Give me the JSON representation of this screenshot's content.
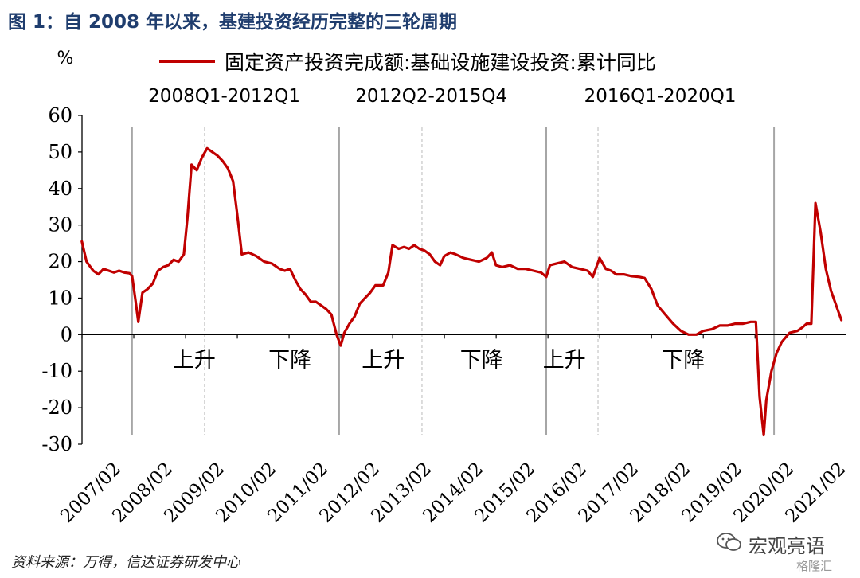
{
  "figure_title": "图 1：自 2008 年以来，基建投资经历完整的三轮周期",
  "source_note": "资料来源：万得，信达证券研发中心",
  "watermark": {
    "brand": "宏观亮语",
    "site": "格隆汇"
  },
  "colors": {
    "series": "#c00000",
    "title": "#1f3d6e",
    "separator": "#a6a6a6"
  },
  "chart_data": {
    "type": "line",
    "title": "",
    "ylabel": "%",
    "xlabel": "",
    "ylim": [
      -30,
      60
    ],
    "yticks": [
      60,
      50,
      40,
      30,
      20,
      10,
      0,
      -10,
      -20,
      -30
    ],
    "xlim": [
      2007.083,
      2021.833
    ],
    "xticks": [
      {
        "label": "2007/02",
        "x": 2007.083
      },
      {
        "label": "2008/02",
        "x": 2008.083
      },
      {
        "label": "2009/02",
        "x": 2009.083
      },
      {
        "label": "2010/02",
        "x": 2010.083
      },
      {
        "label": "2011/02",
        "x": 2011.083
      },
      {
        "label": "2012/02",
        "x": 2012.083
      },
      {
        "label": "2013/02",
        "x": 2013.083
      },
      {
        "label": "2014/02",
        "x": 2014.083
      },
      {
        "label": "2015/02",
        "x": 2015.083
      },
      {
        "label": "2016/02",
        "x": 2016.083
      },
      {
        "label": "2017/02",
        "x": 2017.083
      },
      {
        "label": "2018/02",
        "x": 2018.083
      },
      {
        "label": "2019/02",
        "x": 2019.083
      },
      {
        "label": "2020/02",
        "x": 2020.083
      },
      {
        "label": "2021/02",
        "x": 2021.083
      }
    ],
    "legend": {
      "position": "top",
      "label": "固定资产投资完成额:基础设施建设投资:累计同比"
    },
    "period_labels": [
      {
        "text": "2008Q1-2012Q1",
        "x": 2009.83
      },
      {
        "text": "2012Q2-2015Q4",
        "x": 2013.83
      },
      {
        "text": "2016Q1-2020Q1",
        "x": 2018.25
      }
    ],
    "phase_labels": [
      {
        "text": "上升",
        "x": 2009.25
      },
      {
        "text": "下降",
        "x": 2011.1
      },
      {
        "text": "上升",
        "x": 2012.9
      },
      {
        "text": "下降",
        "x": 2014.8
      },
      {
        "text": "上升",
        "x": 2016.4
      },
      {
        "text": "下降",
        "x": 2018.7
      }
    ],
    "cycle_boundaries": [
      2008.05,
      2012.05,
      2016.05,
      2020.45
    ],
    "phase_dividers": [
      2009.45,
      2013.65,
      2017.05
    ],
    "series": [
      {
        "name": "固定资产投资完成额:基础设施建设投资:累计同比",
        "points": [
          [
            2007.08,
            25.5
          ],
          [
            2007.17,
            20.0
          ],
          [
            2007.3,
            17.5
          ],
          [
            2007.4,
            16.5
          ],
          [
            2007.5,
            18.0
          ],
          [
            2007.6,
            17.5
          ],
          [
            2007.7,
            17.0
          ],
          [
            2007.8,
            17.5
          ],
          [
            2007.9,
            17.0
          ],
          [
            2008.0,
            16.8
          ],
          [
            2008.05,
            16.0
          ],
          [
            2008.12,
            9.0
          ],
          [
            2008.17,
            3.5
          ],
          [
            2008.25,
            11.5
          ],
          [
            2008.35,
            12.5
          ],
          [
            2008.45,
            14.0
          ],
          [
            2008.55,
            17.5
          ],
          [
            2008.65,
            18.5
          ],
          [
            2008.75,
            19.0
          ],
          [
            2008.85,
            20.5
          ],
          [
            2008.95,
            20.0
          ],
          [
            2009.05,
            22.0
          ],
          [
            2009.12,
            32.0
          ],
          [
            2009.2,
            46.5
          ],
          [
            2009.3,
            45.0
          ],
          [
            2009.4,
            48.5
          ],
          [
            2009.5,
            51.0
          ],
          [
            2009.6,
            50.0
          ],
          [
            2009.7,
            49.0
          ],
          [
            2009.8,
            47.5
          ],
          [
            2009.9,
            45.5
          ],
          [
            2010.0,
            42.0
          ],
          [
            2010.08,
            33.0
          ],
          [
            2010.17,
            22.0
          ],
          [
            2010.3,
            22.5
          ],
          [
            2010.45,
            21.5
          ],
          [
            2010.6,
            20.0
          ],
          [
            2010.75,
            19.5
          ],
          [
            2010.9,
            18.0
          ],
          [
            2011.0,
            17.5
          ],
          [
            2011.1,
            18.0
          ],
          [
            2011.2,
            15.0
          ],
          [
            2011.3,
            12.5
          ],
          [
            2011.4,
            11.0
          ],
          [
            2011.5,
            9.0
          ],
          [
            2011.6,
            9.0
          ],
          [
            2011.7,
            8.0
          ],
          [
            2011.8,
            7.0
          ],
          [
            2011.9,
            5.5
          ],
          [
            2012.0,
            0.0
          ],
          [
            2012.08,
            -3.0
          ],
          [
            2012.15,
            0.5
          ],
          [
            2012.25,
            3.0
          ],
          [
            2012.35,
            5.0
          ],
          [
            2012.45,
            8.5
          ],
          [
            2012.55,
            10.0
          ],
          [
            2012.65,
            11.5
          ],
          [
            2012.75,
            13.5
          ],
          [
            2012.9,
            13.5
          ],
          [
            2013.0,
            17.0
          ],
          [
            2013.08,
            24.5
          ],
          [
            2013.2,
            23.5
          ],
          [
            2013.3,
            24.0
          ],
          [
            2013.4,
            23.5
          ],
          [
            2013.5,
            24.5
          ],
          [
            2013.6,
            23.5
          ],
          [
            2013.7,
            23.0
          ],
          [
            2013.8,
            22.0
          ],
          [
            2013.9,
            20.0
          ],
          [
            2014.0,
            19.0
          ],
          [
            2014.08,
            21.5
          ],
          [
            2014.2,
            22.5
          ],
          [
            2014.3,
            22.0
          ],
          [
            2014.45,
            21.0
          ],
          [
            2014.6,
            20.5
          ],
          [
            2014.75,
            20.0
          ],
          [
            2014.9,
            21.0
          ],
          [
            2015.0,
            22.5
          ],
          [
            2015.08,
            19.0
          ],
          [
            2015.2,
            18.5
          ],
          [
            2015.35,
            19.0
          ],
          [
            2015.5,
            18.0
          ],
          [
            2015.65,
            18.0
          ],
          [
            2015.8,
            17.5
          ],
          [
            2015.95,
            17.0
          ],
          [
            2016.05,
            15.8
          ],
          [
            2016.12,
            19.0
          ],
          [
            2016.25,
            19.5
          ],
          [
            2016.4,
            20.0
          ],
          [
            2016.55,
            18.5
          ],
          [
            2016.7,
            18.0
          ],
          [
            2016.85,
            17.5
          ],
          [
            2016.95,
            15.8
          ],
          [
            2017.08,
            21.0
          ],
          [
            2017.2,
            18.0
          ],
          [
            2017.3,
            17.5
          ],
          [
            2017.4,
            16.5
          ],
          [
            2017.55,
            16.5
          ],
          [
            2017.7,
            16.0
          ],
          [
            2017.85,
            15.8
          ],
          [
            2017.95,
            15.5
          ],
          [
            2018.08,
            12.5
          ],
          [
            2018.2,
            8.0
          ],
          [
            2018.35,
            5.5
          ],
          [
            2018.5,
            3.0
          ],
          [
            2018.65,
            1.0
          ],
          [
            2018.8,
            0.0
          ],
          [
            2018.95,
            0.0
          ],
          [
            2019.08,
            1.0
          ],
          [
            2019.25,
            1.5
          ],
          [
            2019.4,
            2.5
          ],
          [
            2019.55,
            2.5
          ],
          [
            2019.7,
            3.0
          ],
          [
            2019.85,
            3.0
          ],
          [
            2020.0,
            3.5
          ],
          [
            2020.1,
            3.5
          ],
          [
            2020.17,
            -17.0
          ],
          [
            2020.25,
            -27.5
          ],
          [
            2020.3,
            -18.0
          ],
          [
            2020.4,
            -10.0
          ],
          [
            2020.5,
            -5.0
          ],
          [
            2020.6,
            -2.0
          ],
          [
            2020.75,
            0.5
          ],
          [
            2020.9,
            1.0
          ],
          [
            2021.0,
            2.0
          ],
          [
            2021.08,
            3.0
          ],
          [
            2021.17,
            3.0
          ],
          [
            2021.25,
            36.0
          ],
          [
            2021.35,
            28.0
          ],
          [
            2021.45,
            18.0
          ],
          [
            2021.55,
            12.0
          ],
          [
            2021.65,
            8.0
          ],
          [
            2021.75,
            4.0
          ]
        ]
      }
    ]
  }
}
